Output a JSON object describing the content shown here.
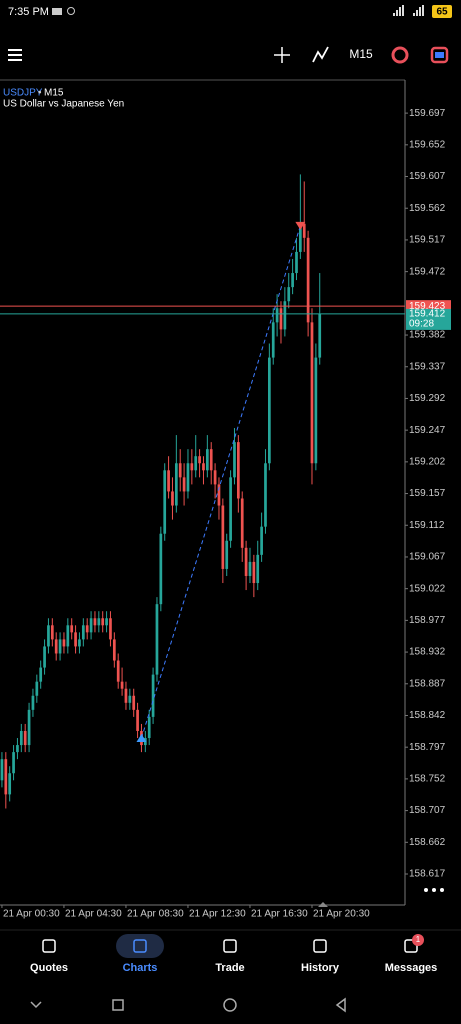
{
  "status_bar": {
    "time": "7:35 PM",
    "battery": "65"
  },
  "toolbar": {
    "timeframe": "M15"
  },
  "chart_data": {
    "type": "candlestick",
    "symbol": "USDJPY",
    "timeframe": "M15",
    "description": "US Dollar vs Japanese Yen",
    "up_color": "#26a69a",
    "down_color": "#ef5350",
    "grid": false,
    "ylim": [
      158.573,
      159.744
    ],
    "yticks": [
      159.697,
      159.652,
      159.607,
      159.562,
      159.517,
      159.472,
      159.382,
      159.337,
      159.292,
      159.247,
      159.202,
      159.157,
      159.112,
      159.067,
      159.022,
      158.977,
      158.932,
      158.887,
      158.842,
      158.797,
      158.752,
      158.707,
      158.662,
      158.617
    ],
    "xlim": [
      -0.5,
      104
    ],
    "xticks": [
      {
        "value": 0,
        "label": "21 Apr 00:30"
      },
      {
        "value": 16,
        "label": "21 Apr 04:30"
      },
      {
        "value": 32,
        "label": "21 Apr 08:30"
      },
      {
        "value": 48,
        "label": "21 Apr 12:30"
      },
      {
        "value": 64,
        "label": "21 Apr 16:30"
      },
      {
        "value": 80,
        "label": "21 Apr 20:30"
      }
    ],
    "ohlc": [
      [
        158.75,
        158.79,
        158.74,
        158.78
      ],
      [
        158.78,
        158.79,
        158.71,
        158.73
      ],
      [
        158.73,
        158.77,
        158.72,
        158.76
      ],
      [
        158.76,
        158.8,
        158.75,
        158.79
      ],
      [
        158.79,
        158.81,
        158.78,
        158.8
      ],
      [
        158.8,
        158.83,
        158.79,
        158.82
      ],
      [
        158.82,
        158.83,
        158.79,
        158.8
      ],
      [
        158.8,
        158.86,
        158.79,
        158.85
      ],
      [
        158.85,
        158.88,
        158.84,
        158.87
      ],
      [
        158.87,
        158.9,
        158.86,
        158.89
      ],
      [
        158.89,
        158.92,
        158.88,
        158.91
      ],
      [
        158.91,
        158.95,
        158.9,
        158.94
      ],
      [
        158.94,
        158.98,
        158.93,
        158.97
      ],
      [
        158.97,
        158.98,
        158.94,
        158.95
      ],
      [
        158.95,
        158.96,
        158.92,
        158.93
      ],
      [
        158.93,
        158.96,
        158.92,
        158.95
      ],
      [
        158.95,
        158.96,
        158.93,
        158.94
      ],
      [
        158.94,
        158.98,
        158.93,
        158.97
      ],
      [
        158.97,
        158.98,
        158.95,
        158.96
      ],
      [
        158.96,
        158.97,
        158.93,
        158.94
      ],
      [
        158.94,
        158.96,
        158.93,
        158.95
      ],
      [
        158.95,
        158.98,
        158.94,
        158.97
      ],
      [
        158.97,
        158.98,
        158.95,
        158.96
      ],
      [
        158.96,
        158.99,
        158.95,
        158.98
      ],
      [
        158.98,
        158.99,
        158.96,
        158.97
      ],
      [
        158.97,
        158.99,
        158.96,
        158.98
      ],
      [
        158.98,
        158.99,
        158.96,
        158.97
      ],
      [
        158.97,
        158.99,
        158.96,
        158.98
      ],
      [
        158.98,
        158.99,
        158.94,
        158.95
      ],
      [
        158.95,
        158.96,
        158.91,
        158.92
      ],
      [
        158.92,
        158.93,
        158.88,
        158.89
      ],
      [
        158.89,
        158.91,
        158.87,
        158.88
      ],
      [
        158.88,
        158.89,
        158.85,
        158.86
      ],
      [
        158.86,
        158.88,
        158.85,
        158.87
      ],
      [
        158.87,
        158.88,
        158.84,
        158.85
      ],
      [
        158.85,
        158.86,
        158.81,
        158.82
      ],
      [
        158.82,
        158.83,
        158.79,
        158.8
      ],
      [
        158.8,
        158.82,
        158.79,
        158.81
      ],
      [
        158.81,
        158.85,
        158.8,
        158.84
      ],
      [
        158.84,
        158.91,
        158.83,
        158.9
      ],
      [
        158.9,
        159.01,
        158.89,
        159.0
      ],
      [
        159.0,
        159.11,
        158.99,
        159.1
      ],
      [
        159.1,
        159.2,
        159.09,
        159.19
      ],
      [
        159.19,
        159.21,
        159.15,
        159.16
      ],
      [
        159.16,
        159.18,
        159.12,
        159.14
      ],
      [
        159.14,
        159.24,
        159.13,
        159.2
      ],
      [
        159.2,
        159.22,
        159.16,
        159.18
      ],
      [
        159.18,
        159.2,
        159.14,
        159.16
      ],
      [
        159.16,
        159.22,
        159.15,
        159.2
      ],
      [
        159.2,
        159.22,
        159.17,
        159.19
      ],
      [
        159.19,
        159.24,
        159.18,
        159.21
      ],
      [
        159.21,
        159.22,
        159.18,
        159.2
      ],
      [
        159.2,
        159.21,
        159.17,
        159.19
      ],
      [
        159.19,
        159.24,
        159.18,
        159.22
      ],
      [
        159.22,
        159.23,
        159.17,
        159.19
      ],
      [
        159.19,
        159.2,
        159.15,
        159.17
      ],
      [
        159.17,
        159.18,
        159.12,
        159.14
      ],
      [
        159.14,
        159.15,
        159.03,
        159.05
      ],
      [
        159.05,
        159.1,
        159.04,
        159.09
      ],
      [
        159.09,
        159.19,
        159.08,
        159.18
      ],
      [
        159.18,
        159.25,
        159.17,
        159.23
      ],
      [
        159.23,
        159.24,
        159.13,
        159.15
      ],
      [
        159.15,
        159.16,
        159.06,
        159.08
      ],
      [
        159.08,
        159.09,
        159.02,
        159.04
      ],
      [
        159.04,
        159.08,
        159.03,
        159.06
      ],
      [
        159.06,
        159.07,
        159.01,
        159.03
      ],
      [
        159.03,
        159.09,
        159.02,
        159.07
      ],
      [
        159.07,
        159.13,
        159.06,
        159.11
      ],
      [
        159.11,
        159.22,
        159.1,
        159.2
      ],
      [
        159.2,
        159.37,
        159.19,
        159.35
      ],
      [
        159.35,
        159.42,
        159.34,
        159.4
      ],
      [
        159.4,
        159.44,
        159.38,
        159.42
      ],
      [
        159.42,
        159.43,
        159.37,
        159.39
      ],
      [
        159.39,
        159.45,
        159.38,
        159.43
      ],
      [
        159.43,
        159.47,
        159.42,
        159.45
      ],
      [
        159.45,
        159.49,
        159.44,
        159.47
      ],
      [
        159.47,
        159.52,
        159.46,
        159.5
      ],
      [
        159.5,
        159.61,
        159.49,
        159.54
      ],
      [
        159.54,
        159.6,
        159.5,
        159.52
      ],
      [
        159.52,
        159.53,
        159.38,
        159.4
      ],
      [
        159.4,
        159.42,
        159.17,
        159.2
      ],
      [
        159.2,
        159.37,
        159.19,
        159.35
      ],
      [
        159.35,
        159.47,
        159.34,
        159.412
      ]
    ],
    "ask": 159.423,
    "bid": 159.412,
    "countdown": "09:28",
    "trade": {
      "open_index": 36,
      "open_price": 158.81,
      "close_index": 77,
      "close_price": 159.537
    }
  },
  "nav": {
    "items": [
      "Quotes",
      "Charts",
      "Trade",
      "History",
      "Messages"
    ],
    "active": "Charts",
    "messages_badge": "1"
  }
}
